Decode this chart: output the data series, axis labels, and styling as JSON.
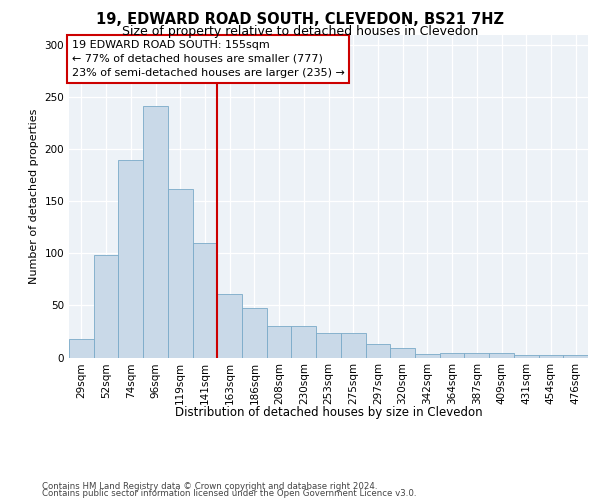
{
  "title1": "19, EDWARD ROAD SOUTH, CLEVEDON, BS21 7HZ",
  "title2": "Size of property relative to detached houses in Clevedon",
  "xlabel": "Distribution of detached houses by size in Clevedon",
  "ylabel": "Number of detached properties",
  "footer1": "Contains HM Land Registry data © Crown copyright and database right 2024.",
  "footer2": "Contains public sector information licensed under the Open Government Licence v3.0.",
  "annotation_line1": "19 EDWARD ROAD SOUTH: 155sqm",
  "annotation_line2": "← 77% of detached houses are smaller (777)",
  "annotation_line3": "23% of semi-detached houses are larger (235) →",
  "bar_categories": [
    "29sqm",
    "52sqm",
    "74sqm",
    "96sqm",
    "119sqm",
    "141sqm",
    "163sqm",
    "186sqm",
    "208sqm",
    "230sqm",
    "253sqm",
    "275sqm",
    "297sqm",
    "320sqm",
    "342sqm",
    "364sqm",
    "387sqm",
    "409sqm",
    "431sqm",
    "454sqm",
    "476sqm"
  ],
  "bar_values": [
    18,
    99,
    190,
    242,
    162,
    110,
    61,
    48,
    30,
    30,
    24,
    24,
    13,
    9,
    3,
    4,
    4,
    4,
    2,
    2,
    2
  ],
  "bar_color": "#c9d9e8",
  "bar_edge_color": "#7aaac8",
  "vline_x": 5.5,
  "vline_color": "#cc0000",
  "annotation_box_edge_color": "#cc0000",
  "background_color": "#edf2f7",
  "ylim": [
    0,
    310
  ],
  "yticks": [
    0,
    50,
    100,
    150,
    200,
    250,
    300
  ],
  "title1_fontsize": 10.5,
  "title2_fontsize": 9.0,
  "ylabel_fontsize": 8.0,
  "xlabel_fontsize": 8.5,
  "tick_fontsize": 7.5,
  "annotation_fontsize": 8.0,
  "footer_fontsize": 6.2
}
